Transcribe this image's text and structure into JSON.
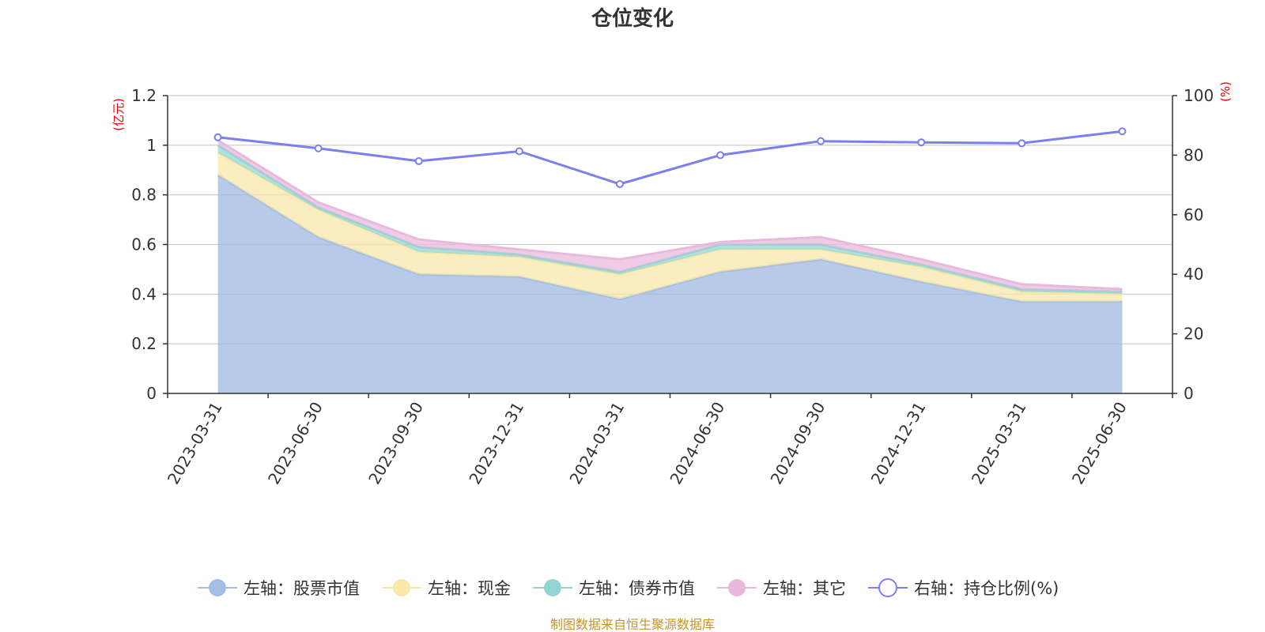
{
  "source_note": "制图数据来自恒生聚源数据库",
  "colors": {
    "stock": "#a3bde3",
    "cash": "#f8e8a8",
    "bond": "#92d4d2",
    "other": "#e8b9dd",
    "ratio": "#7b7ff0",
    "unit": "#e60000",
    "source": "#c8942a"
  },
  "chart_data": {
    "type": "area",
    "title": "仓位变化",
    "left_axis": {
      "unit_label": "(亿元)",
      "ylim": [
        0,
        1.2
      ],
      "ticks": [
        "0",
        "0.2",
        "0.4",
        "0.6",
        "0.8",
        "1",
        "1.2"
      ]
    },
    "right_axis": {
      "unit_label": "(%)",
      "ylim": [
        0,
        100
      ],
      "ticks": [
        "0",
        "20",
        "40",
        "60",
        "80",
        "100"
      ]
    },
    "categories": [
      "2023-03-31",
      "2023-06-30",
      "2023-09-30",
      "2023-12-31",
      "2024-03-31",
      "2024-06-30",
      "2024-09-30",
      "2024-12-31",
      "2025-03-31",
      "2025-06-30"
    ],
    "series": [
      {
        "key": "stock",
        "name": "左轴：股票市值",
        "axis": "left",
        "stacked": true,
        "values": [
          0.88,
          0.63,
          0.48,
          0.47,
          0.38,
          0.49,
          0.54,
          0.45,
          0.37,
          0.37
        ]
      },
      {
        "key": "cash",
        "name": "左轴：现金",
        "axis": "left",
        "stacked": true,
        "values": [
          0.09,
          0.11,
          0.09,
          0.08,
          0.1,
          0.09,
          0.04,
          0.06,
          0.04,
          0.03
        ]
      },
      {
        "key": "bond",
        "name": "左轴：债券市值",
        "axis": "left",
        "stacked": true,
        "values": [
          0.03,
          0.01,
          0.02,
          0.01,
          0.01,
          0.02,
          0.02,
          0.01,
          0.01,
          0.01
        ]
      },
      {
        "key": "other",
        "name": "左轴：其它",
        "axis": "left",
        "stacked": true,
        "values": [
          0.02,
          0.02,
          0.03,
          0.02,
          0.05,
          0.01,
          0.03,
          0.02,
          0.02,
          0.01
        ]
      },
      {
        "key": "ratio",
        "name": "右轴：持仓比例(%)",
        "axis": "right",
        "stacked": false,
        "values": [
          86,
          82.3,
          78,
          81.3,
          70.3,
          80,
          84.7,
          84.3,
          84,
          88
        ]
      }
    ],
    "grid": true,
    "legend_position": "bottom"
  }
}
